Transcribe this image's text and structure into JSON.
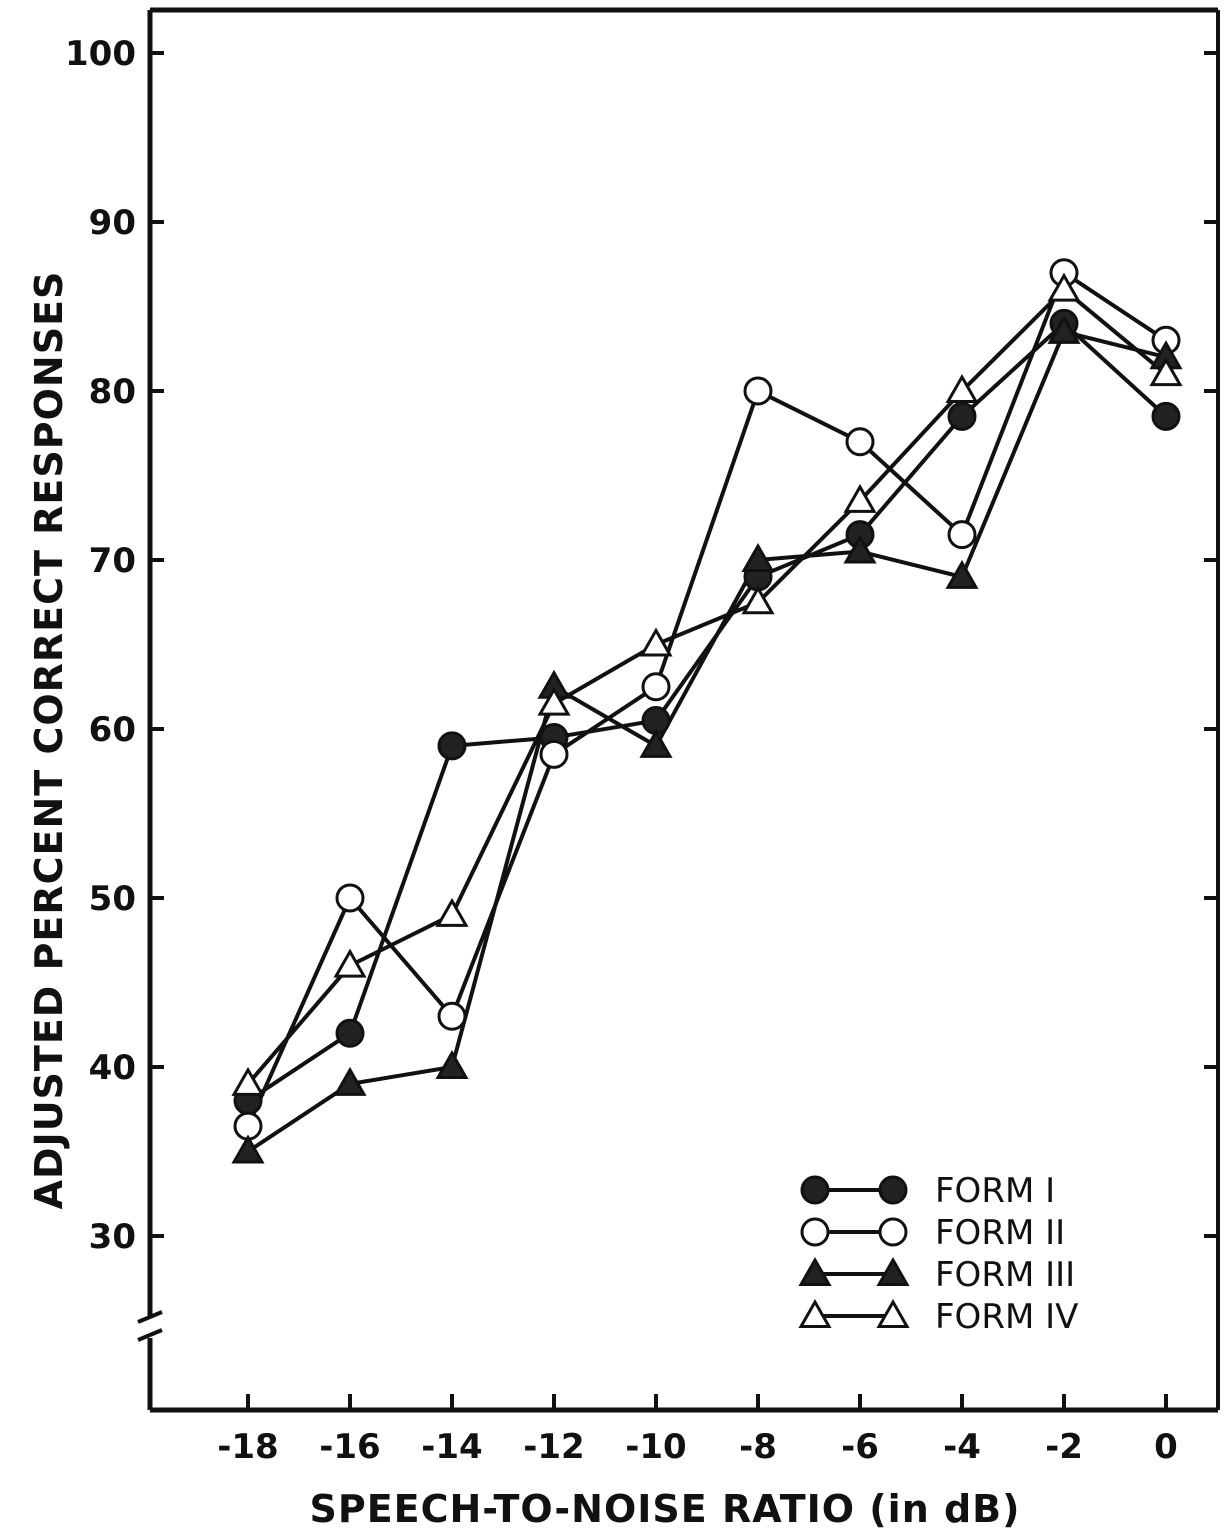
{
  "chart_data": {
    "type": "line",
    "title": "",
    "xlabel": "SPEECH-TO-NOISE RATIO (in dB)",
    "ylabel": "ADJUSTED PERCENT CORRECT RESPONSES",
    "x": [
      -18,
      -16,
      -14,
      -12,
      -10,
      -8,
      -6,
      -4,
      -2,
      0
    ],
    "x_tick_labels": [
      "-18",
      "-16",
      "-14",
      "-12",
      "-10",
      "-8",
      "-6",
      "-4",
      "-2",
      "0"
    ],
    "y_ticks": [
      30,
      40,
      50,
      60,
      70,
      80,
      90,
      100
    ],
    "y_tick_labels": [
      "30",
      "40",
      "50",
      "60",
      "70",
      "80",
      "90",
      "100"
    ],
    "xlim": [
      -20,
      0.5
    ],
    "ylim": [
      23,
      102
    ],
    "y_axis_break": true,
    "grid": false,
    "legend_position": "bottom-right",
    "series": [
      {
        "name": "FORM I",
        "marker": "filled-circle",
        "values": [
          38,
          42,
          59,
          59.5,
          60.5,
          69,
          71.5,
          78.5,
          84,
          78.5
        ]
      },
      {
        "name": "FORM II",
        "marker": "open-circle",
        "values": [
          36.5,
          50,
          43,
          58.5,
          62.5,
          80,
          77,
          71.5,
          87,
          83
        ]
      },
      {
        "name": "FORM III",
        "marker": "filled-triangle",
        "values": [
          35,
          39,
          40,
          62.5,
          59,
          70,
          70.5,
          69,
          83.5,
          82
        ]
      },
      {
        "name": "FORM IV",
        "marker": "open-triangle",
        "values": [
          39,
          46,
          49,
          61.5,
          65,
          67.5,
          73.5,
          80,
          86,
          81
        ]
      }
    ]
  }
}
